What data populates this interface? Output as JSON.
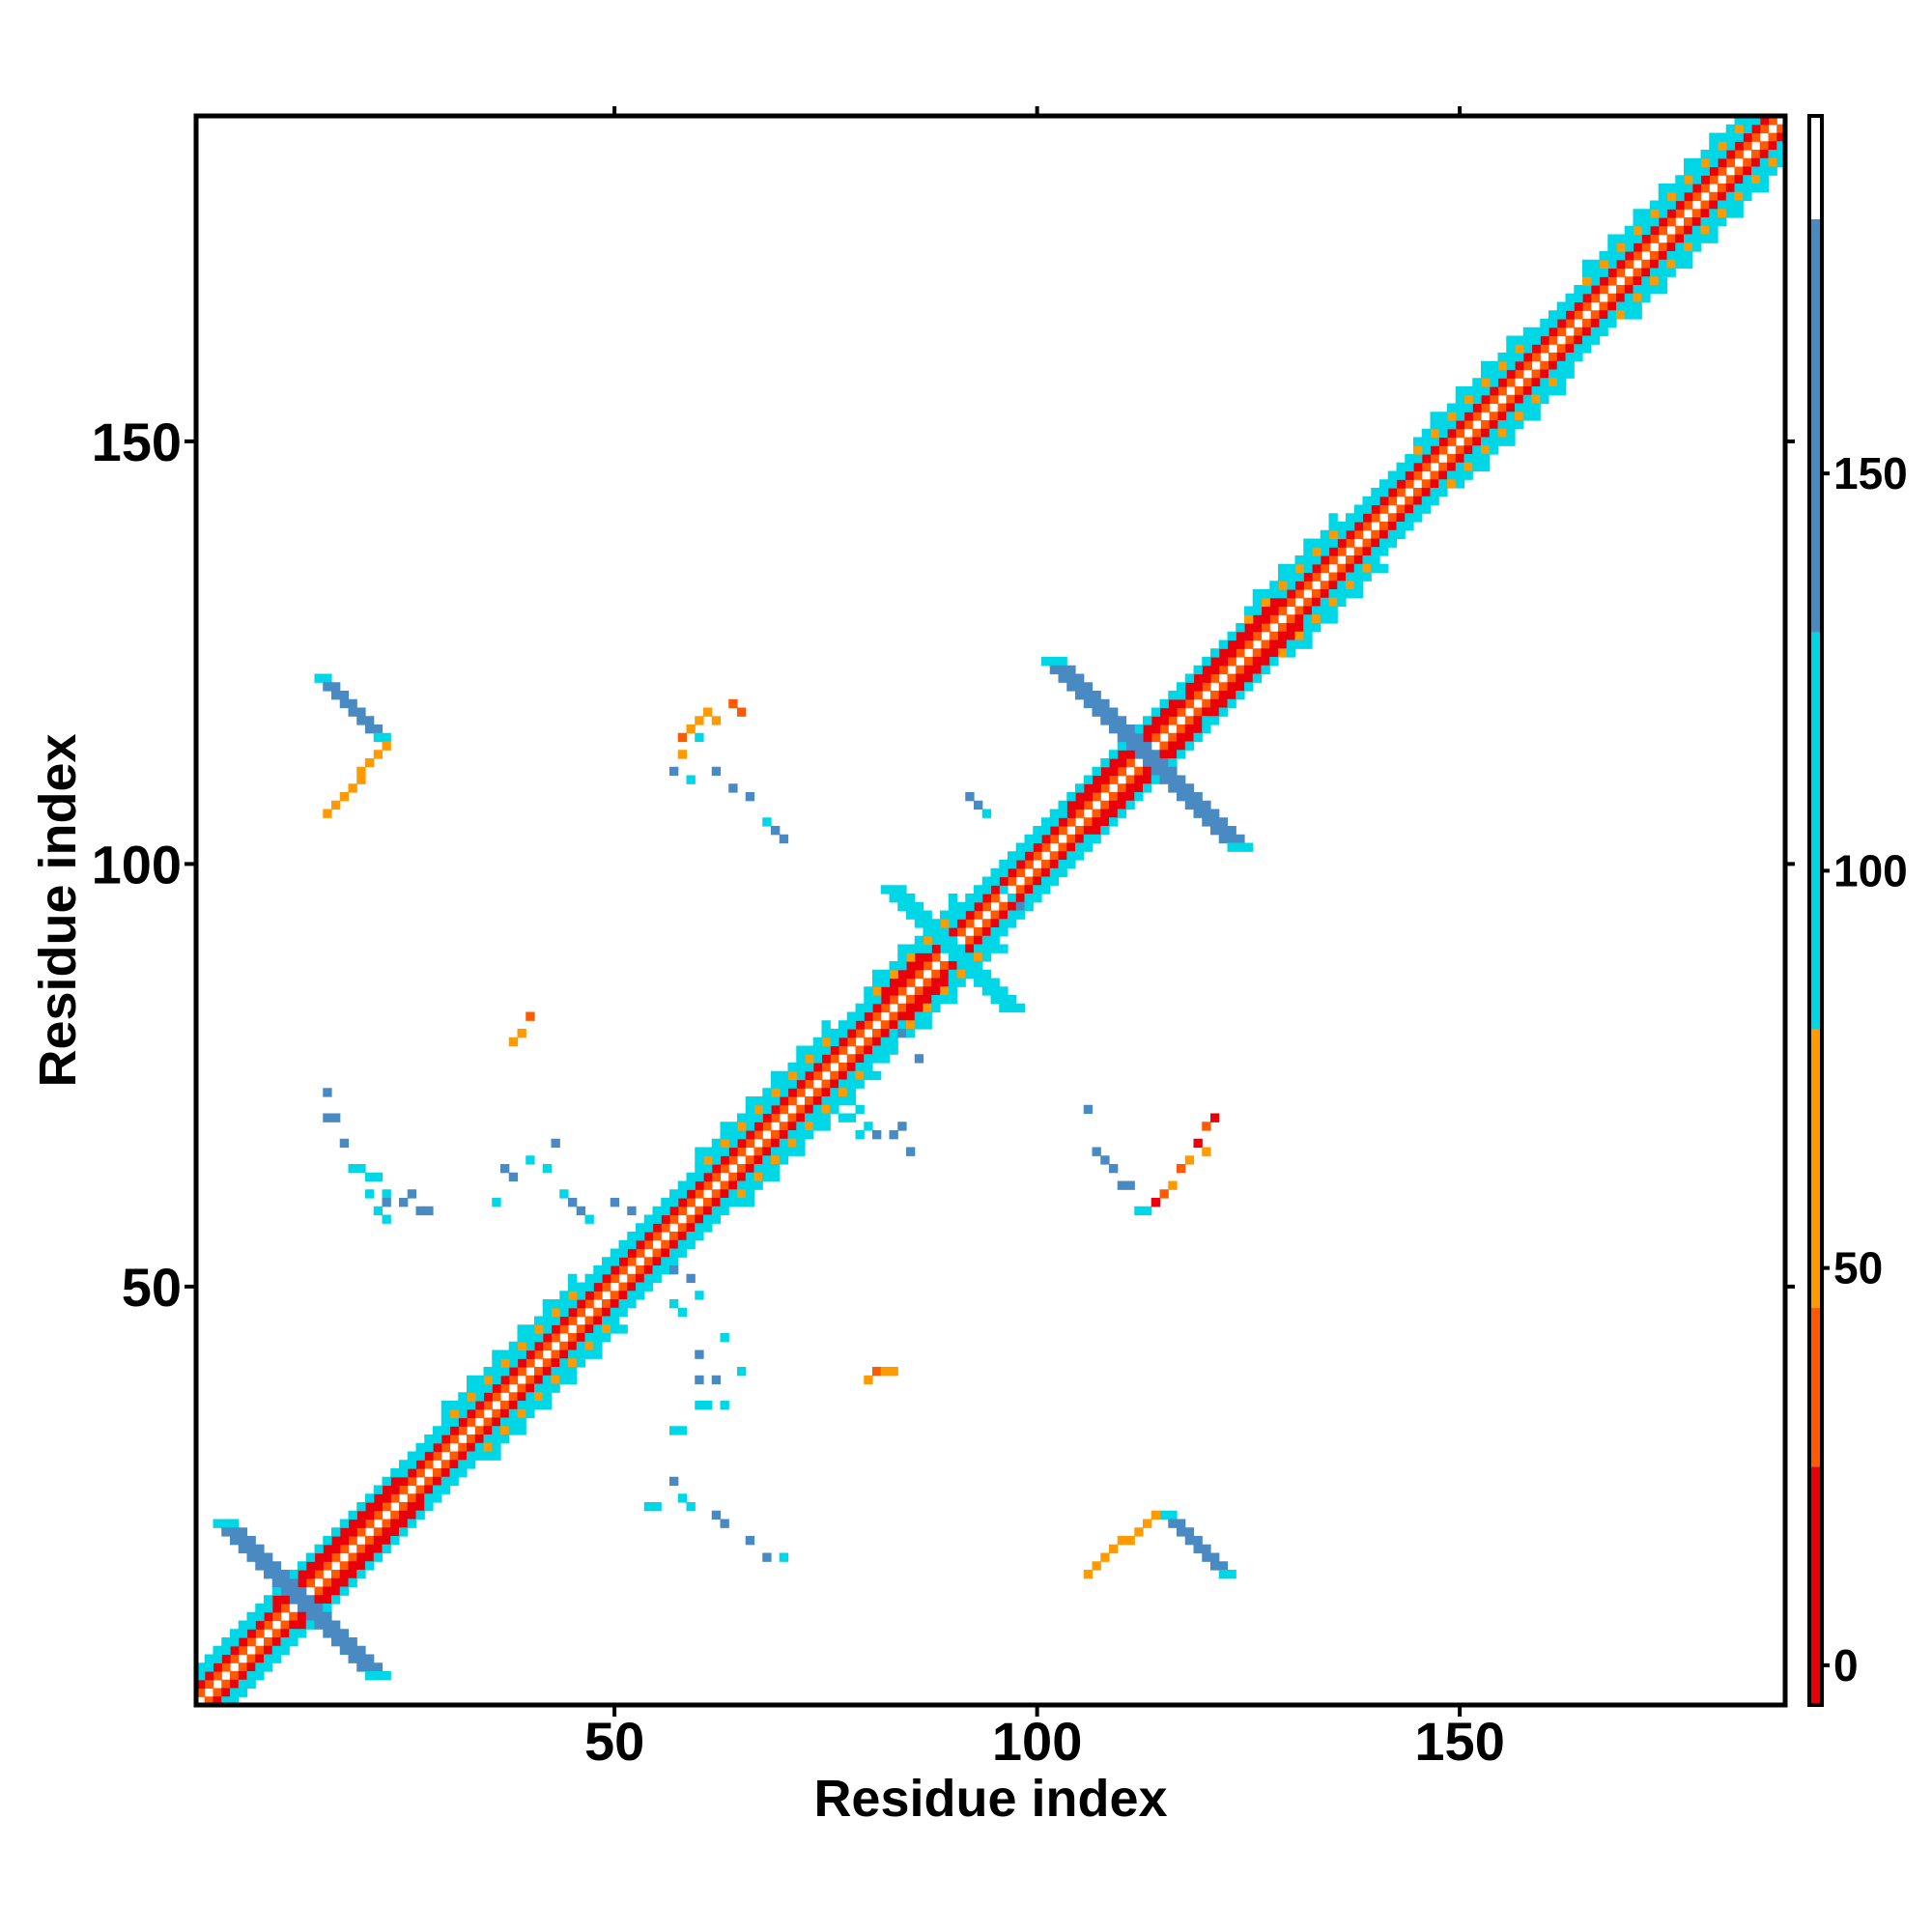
{
  "chart_data": {
    "type": "heatmap",
    "title": "",
    "xlabel": "Residue index",
    "ylabel": "Residue index",
    "xlim": [
      1,
      188
    ],
    "ylim": [
      1,
      188
    ],
    "x_ticks": [
      50,
      100,
      150
    ],
    "x_tick_labels": [
      "50",
      "100",
      "150"
    ],
    "y_ticks": [
      50,
      100,
      150
    ],
    "y_tick_labels": [
      "50",
      "100",
      "150"
    ],
    "grid": false,
    "colorbar": {
      "placement": "right",
      "range": [
        -5,
        195
      ],
      "ticks": [
        0,
        50,
        100,
        150
      ],
      "tick_labels": [
        "0",
        "50",
        "100",
        "150"
      ],
      "bands": [
        {
          "from": -5,
          "to": 25,
          "color": "#e8000b"
        },
        {
          "from": 25,
          "to": 45,
          "color": "#ff5a00"
        },
        {
          "from": 45,
          "to": 80,
          "color": "#ff9a00"
        },
        {
          "from": 80,
          "to": 130,
          "color": "#00d7e6"
        },
        {
          "from": 130,
          "to": 182,
          "color": "#4a8ac2"
        },
        {
          "from": 182,
          "to": 195,
          "color": "#ffffff"
        }
      ]
    },
    "cell_values": [
      {
        "c": "#e8000b",
        "v": 5
      },
      {
        "c": "#ff5a00",
        "v": 35
      },
      {
        "c": "#ff9a00",
        "v": 60
      },
      {
        "c": "#00d7e6",
        "v": 100
      },
      {
        "c": "#4a8ac2",
        "v": 150
      }
    ],
    "features": {
      "diagonal_bands": [
        {
          "offset": 1,
          "k": 1
        },
        {
          "offset": 2,
          "k": 0
        },
        {
          "offset": 3,
          "k": 3
        },
        {
          "offset": 4,
          "k": 3
        }
      ],
      "red_segments": [
        [
          10,
          24
        ],
        [
          82,
          86
        ],
        [
          104,
          116
        ],
        [
          118,
          124
        ],
        [
          124,
          128
        ]
      ],
      "helix_blocks": [
        [
          30,
          45
        ],
        [
          60,
          75
        ],
        [
          80,
          90
        ],
        [
          125,
          135
        ],
        [
          145,
          158
        ],
        [
          165,
          187
        ]
      ],
      "crosses": [
        {
          "cx": 13,
          "cy": 13,
          "half": 9,
          "k": 4
        },
        {
          "cx": 90,
          "cy": 90,
          "half": 7,
          "k": 3
        },
        {
          "cx": 113,
          "cy": 113,
          "half": 11,
          "k": 4
        }
      ],
      "strand_pairs": [
        {
          "x0": 115,
          "y0": 23,
          "x1": 122,
          "y1": 16,
          "w": 2,
          "k": 4
        },
        {
          "x0": 106,
          "y0": 16,
          "x1": 114,
          "y1": 23,
          "w": 1,
          "k": 2
        },
        {
          "x0": 15,
          "y0": 122,
          "x1": 22,
          "y1": 115,
          "w": 2,
          "k": 4
        },
        {
          "x0": 16,
          "y0": 106,
          "x1": 23,
          "y1": 114,
          "w": 1,
          "k": 2
        }
      ],
      "contact_cells": [
        [
          58,
          25,
          3
        ],
        [
          59,
          24,
          3
        ],
        [
          57,
          27,
          4
        ],
        [
          62,
          23,
          4
        ],
        [
          63,
          22,
          4
        ],
        [
          66,
          20,
          4
        ],
        [
          68,
          18,
          4
        ],
        [
          70,
          18,
          3
        ],
        [
          54,
          24,
          3
        ],
        [
          55,
          24,
          3
        ],
        [
          57,
          33,
          3
        ],
        [
          58,
          33,
          3
        ],
        [
          60,
          36,
          3
        ],
        [
          61,
          36,
          3
        ],
        [
          63,
          36,
          3
        ],
        [
          60,
          39,
          4
        ],
        [
          62,
          39,
          4
        ],
        [
          65,
          40,
          3
        ],
        [
          60,
          42,
          4
        ],
        [
          63,
          44,
          3
        ],
        [
          57,
          48,
          3
        ],
        [
          58,
          47,
          3
        ],
        [
          60,
          49,
          3
        ],
        [
          57,
          52,
          4
        ],
        [
          59,
          51,
          4
        ],
        [
          80,
          39,
          2
        ],
        [
          81,
          40,
          1
        ],
        [
          82,
          40,
          2
        ],
        [
          83,
          40,
          2
        ],
        [
          16,
          73,
          4
        ],
        [
          16,
          70,
          4
        ],
        [
          17,
          70,
          4
        ],
        [
          18,
          67,
          4
        ],
        [
          19,
          64,
          3
        ],
        [
          20,
          64,
          3
        ],
        [
          21,
          63,
          3
        ],
        [
          22,
          63,
          3
        ],
        [
          21,
          61,
          3
        ],
        [
          23,
          61,
          3
        ],
        [
          23,
          60,
          4
        ],
        [
          25,
          60,
          4
        ],
        [
          22,
          59,
          3
        ],
        [
          23,
          58,
          3
        ],
        [
          26,
          61,
          4
        ],
        [
          27,
          59,
          4
        ],
        [
          28,
          59,
          4
        ],
        [
          36,
          60,
          3
        ],
        [
          37,
          64,
          4
        ],
        [
          38,
          63,
          4
        ],
        [
          40,
          65,
          3
        ],
        [
          42,
          64,
          3
        ],
        [
          43,
          67,
          4
        ],
        [
          44,
          61,
          3
        ],
        [
          45,
          60,
          4
        ],
        [
          46,
          59,
          4
        ],
        [
          47,
          58,
          3
        ],
        [
          50,
          60,
          4
        ],
        [
          52,
          59,
          4
        ],
        [
          38,
          79,
          2
        ],
        [
          39,
          80,
          2
        ],
        [
          40,
          82,
          1
        ],
        [
          82,
          77,
          3
        ],
        [
          83,
          78,
          3
        ],
        [
          84,
          80,
          4
        ],
        [
          86,
          77,
          4
        ],
        [
          79,
          71,
          3
        ],
        [
          80,
          69,
          3
        ],
        [
          81,
          68,
          4
        ],
        [
          83,
          68,
          4
        ],
        [
          84,
          69,
          4
        ],
        [
          85,
          66,
          4
        ],
        [
          76,
          72,
          3
        ],
        [
          77,
          70,
          3
        ],
        [
          78,
          70,
          3
        ],
        [
          79,
          68,
          3
        ],
        [
          58,
          115,
          1
        ],
        [
          59,
          116,
          2
        ],
        [
          60,
          117,
          2
        ],
        [
          61,
          118,
          2
        ],
        [
          62,
          117,
          2
        ],
        [
          64,
          119,
          1
        ],
        [
          65,
          118,
          1
        ],
        [
          58,
          113,
          2
        ],
        [
          60,
          115,
          3
        ],
        [
          57,
          111,
          4
        ],
        [
          59,
          110,
          3
        ],
        [
          62,
          111,
          4
        ],
        [
          64,
          109,
          4
        ],
        [
          66,
          108,
          4
        ],
        [
          68,
          105,
          3
        ],
        [
          69,
          104,
          4
        ],
        [
          70,
          103,
          4
        ],
        [
          92,
          108,
          4
        ],
        [
          93,
          107,
          4
        ],
        [
          94,
          106,
          3
        ],
        [
          96,
          97,
          3
        ],
        [
          97,
          96,
          3
        ],
        [
          98,
          95,
          4
        ],
        [
          106,
          71,
          4
        ],
        [
          107,
          66,
          4
        ],
        [
          108,
          65,
          4
        ],
        [
          109,
          64,
          4
        ],
        [
          110,
          62,
          4
        ],
        [
          111,
          62,
          4
        ],
        [
          112,
          59,
          3
        ],
        [
          113,
          59,
          3
        ],
        [
          114,
          60,
          0
        ],
        [
          115,
          61,
          1
        ],
        [
          116,
          62,
          2
        ],
        [
          117,
          64,
          1
        ],
        [
          118,
          65,
          2
        ],
        [
          119,
          67,
          0
        ],
        [
          120,
          66,
          2
        ],
        [
          120,
          69,
          1
        ],
        [
          121,
          70,
          0
        ]
      ]
    }
  }
}
